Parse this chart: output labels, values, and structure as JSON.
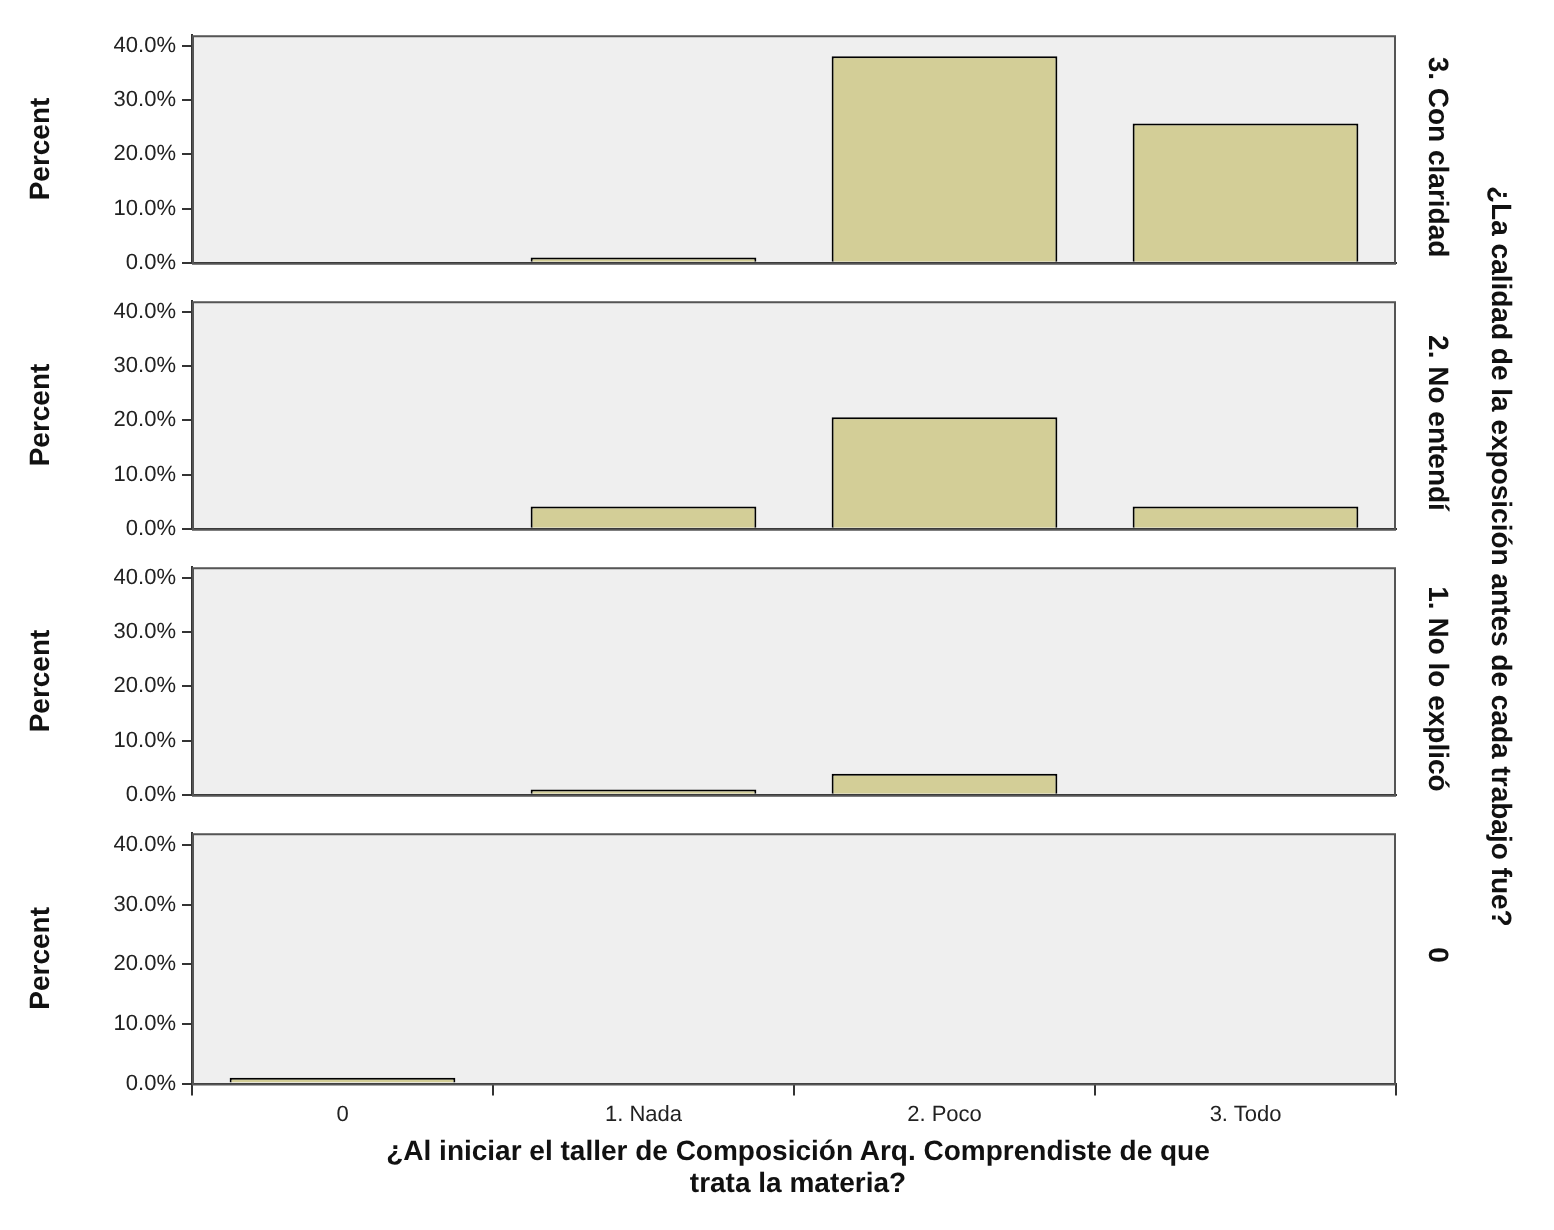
{
  "chart_data": [
    {
      "type": "bar",
      "categories": [
        null,
        null,
        null,
        null
      ],
      "values": [
        null,
        1.0,
        38.1,
        25.7
      ],
      "color": "#d3ce97",
      "ylabel": "Percent",
      "y2label": "3. Con claridad",
      "ylim": [
        0,
        42
      ],
      "yticks": [
        {
          "value": 0,
          "label": "0.0%"
        },
        {
          "value": 10,
          "label": "10.0%"
        },
        {
          "value": 20,
          "label": "20.0%"
        },
        {
          "value": 30,
          "label": "30.0%"
        },
        {
          "value": 40,
          "label": "40.0%"
        }
      ],
      "tick_labels": "y",
      "grid": false,
      "annotations": [
        "¿La calidad de la exposición antes de cada trabajo fue?"
      ]
    },
    {
      "type": "bar",
      "categories": [
        null,
        null,
        null,
        null
      ],
      "values": [
        null,
        4.1,
        20.6,
        4.1
      ],
      "color": "#d3ce97",
      "ylabel": "Percent",
      "y2label": "2. No entendí",
      "ylim": [
        0,
        42
      ],
      "yticks": [
        {
          "value": 0,
          "label": "0.0%"
        },
        {
          "value": 10,
          "label": "10.0%"
        },
        {
          "value": 20,
          "label": "20.0%"
        },
        {
          "value": 30,
          "label": "30.0%"
        },
        {
          "value": 40,
          "label": "40.0%"
        }
      ],
      "tick_labels": "y",
      "grid": false
    },
    {
      "type": "bar",
      "categories": [
        null,
        null,
        null,
        null
      ],
      "values": [
        null,
        1.0,
        3.9,
        null
      ],
      "color": "#d3ce97",
      "ylabel": "Percent",
      "y2label": "1. No lo explicó",
      "ylim": [
        0,
        42
      ],
      "yticks": [
        {
          "value": 0,
          "label": "0.0%"
        },
        {
          "value": 10,
          "label": "10.0%"
        },
        {
          "value": 20,
          "label": "20.0%"
        },
        {
          "value": 30,
          "label": "30.0%"
        },
        {
          "value": 40,
          "label": "40.0%"
        }
      ],
      "tick_labels": "y",
      "grid": false
    },
    {
      "type": "bar",
      "categories": [
        "0",
        "1. Nada",
        "2. Poco",
        "3. Todo"
      ],
      "values": [
        1.0,
        null,
        null,
        null
      ],
      "color": "#d3ce97",
      "ylabel": "Percent",
      "y2label": "0",
      "xlabel": "¿Al iniciar el taller de Composición Arq. Comprendiste de que trata la materia?",
      "ylim": [
        0,
        42
      ],
      "yticks": [
        {
          "value": 0,
          "label": "0.0%"
        },
        {
          "value": 10,
          "label": "10.0%"
        },
        {
          "value": 20,
          "label": "20.0%"
        },
        {
          "value": 30,
          "label": "30.0%"
        },
        {
          "value": 40,
          "label": "40.0%"
        }
      ],
      "grid": false
    }
  ]
}
